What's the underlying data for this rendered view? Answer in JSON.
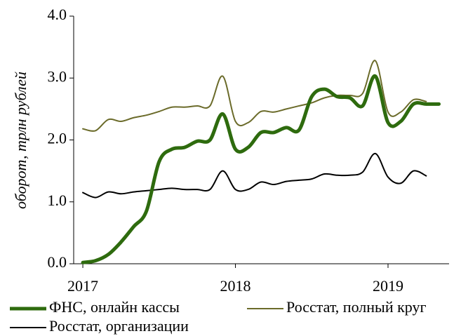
{
  "chart_data": {
    "type": "line",
    "y_label": "оборот, трлн рублей",
    "x": [
      2017,
      2017.0833,
      2017.1667,
      2017.25,
      2017.3333,
      2017.4167,
      2017.5,
      2017.5833,
      2017.6667,
      2017.75,
      2017.8333,
      2017.9167,
      2018,
      2018.0833,
      2018.1667,
      2018.25,
      2018.3333,
      2018.4167,
      2018.5,
      2018.5833,
      2018.6667,
      2018.75,
      2018.8333,
      2018.9167,
      2019,
      2019.0833,
      2019.1667,
      2019.25,
      2019.3333
    ],
    "series": [
      {
        "name": "ФНС, онлайн кассы",
        "color": "#2e6b0e",
        "width": 5,
        "values": [
          0.02,
          0.05,
          0.15,
          0.35,
          0.6,
          0.85,
          1.65,
          1.85,
          1.88,
          1.98,
          2.0,
          2.42,
          1.85,
          1.88,
          2.12,
          2.12,
          2.2,
          2.16,
          2.7,
          2.82,
          2.7,
          2.68,
          2.55,
          3.03,
          2.28,
          2.3,
          2.58,
          2.58,
          2.58
        ]
      },
      {
        "name": "Росстат, полный круг",
        "color": "#6b6b2a",
        "width": 2,
        "values": [
          2.18,
          2.15,
          2.33,
          2.3,
          2.36,
          2.4,
          2.46,
          2.53,
          2.53,
          2.55,
          2.55,
          3.03,
          2.3,
          2.28,
          2.46,
          2.45,
          2.5,
          2.55,
          2.6,
          2.68,
          2.72,
          2.72,
          2.75,
          3.28,
          2.45,
          2.45,
          2.65,
          2.62,
          null
        ]
      },
      {
        "name": "Росстат, организации",
        "color": "#000000",
        "width": 2,
        "values": [
          1.15,
          1.07,
          1.16,
          1.13,
          1.16,
          1.18,
          1.2,
          1.22,
          1.2,
          1.2,
          1.2,
          1.5,
          1.2,
          1.2,
          1.32,
          1.28,
          1.33,
          1.35,
          1.37,
          1.45,
          1.43,
          1.43,
          1.48,
          1.78,
          1.4,
          1.3,
          1.5,
          1.42,
          null
        ]
      }
    ],
    "xlim": [
      2016.94,
      2019.4
    ],
    "xticks": [
      2017,
      2018,
      2019
    ],
    "ylim": [
      0,
      4
    ],
    "yticks": [
      {
        "value": 0,
        "label": "0.0"
      },
      {
        "value": 1,
        "label": "1.0"
      },
      {
        "value": 2,
        "label": "2.0"
      },
      {
        "value": 3,
        "label": "3.0"
      },
      {
        "value": 4,
        "label": "4.0"
      }
    ],
    "legend": "bottom"
  }
}
